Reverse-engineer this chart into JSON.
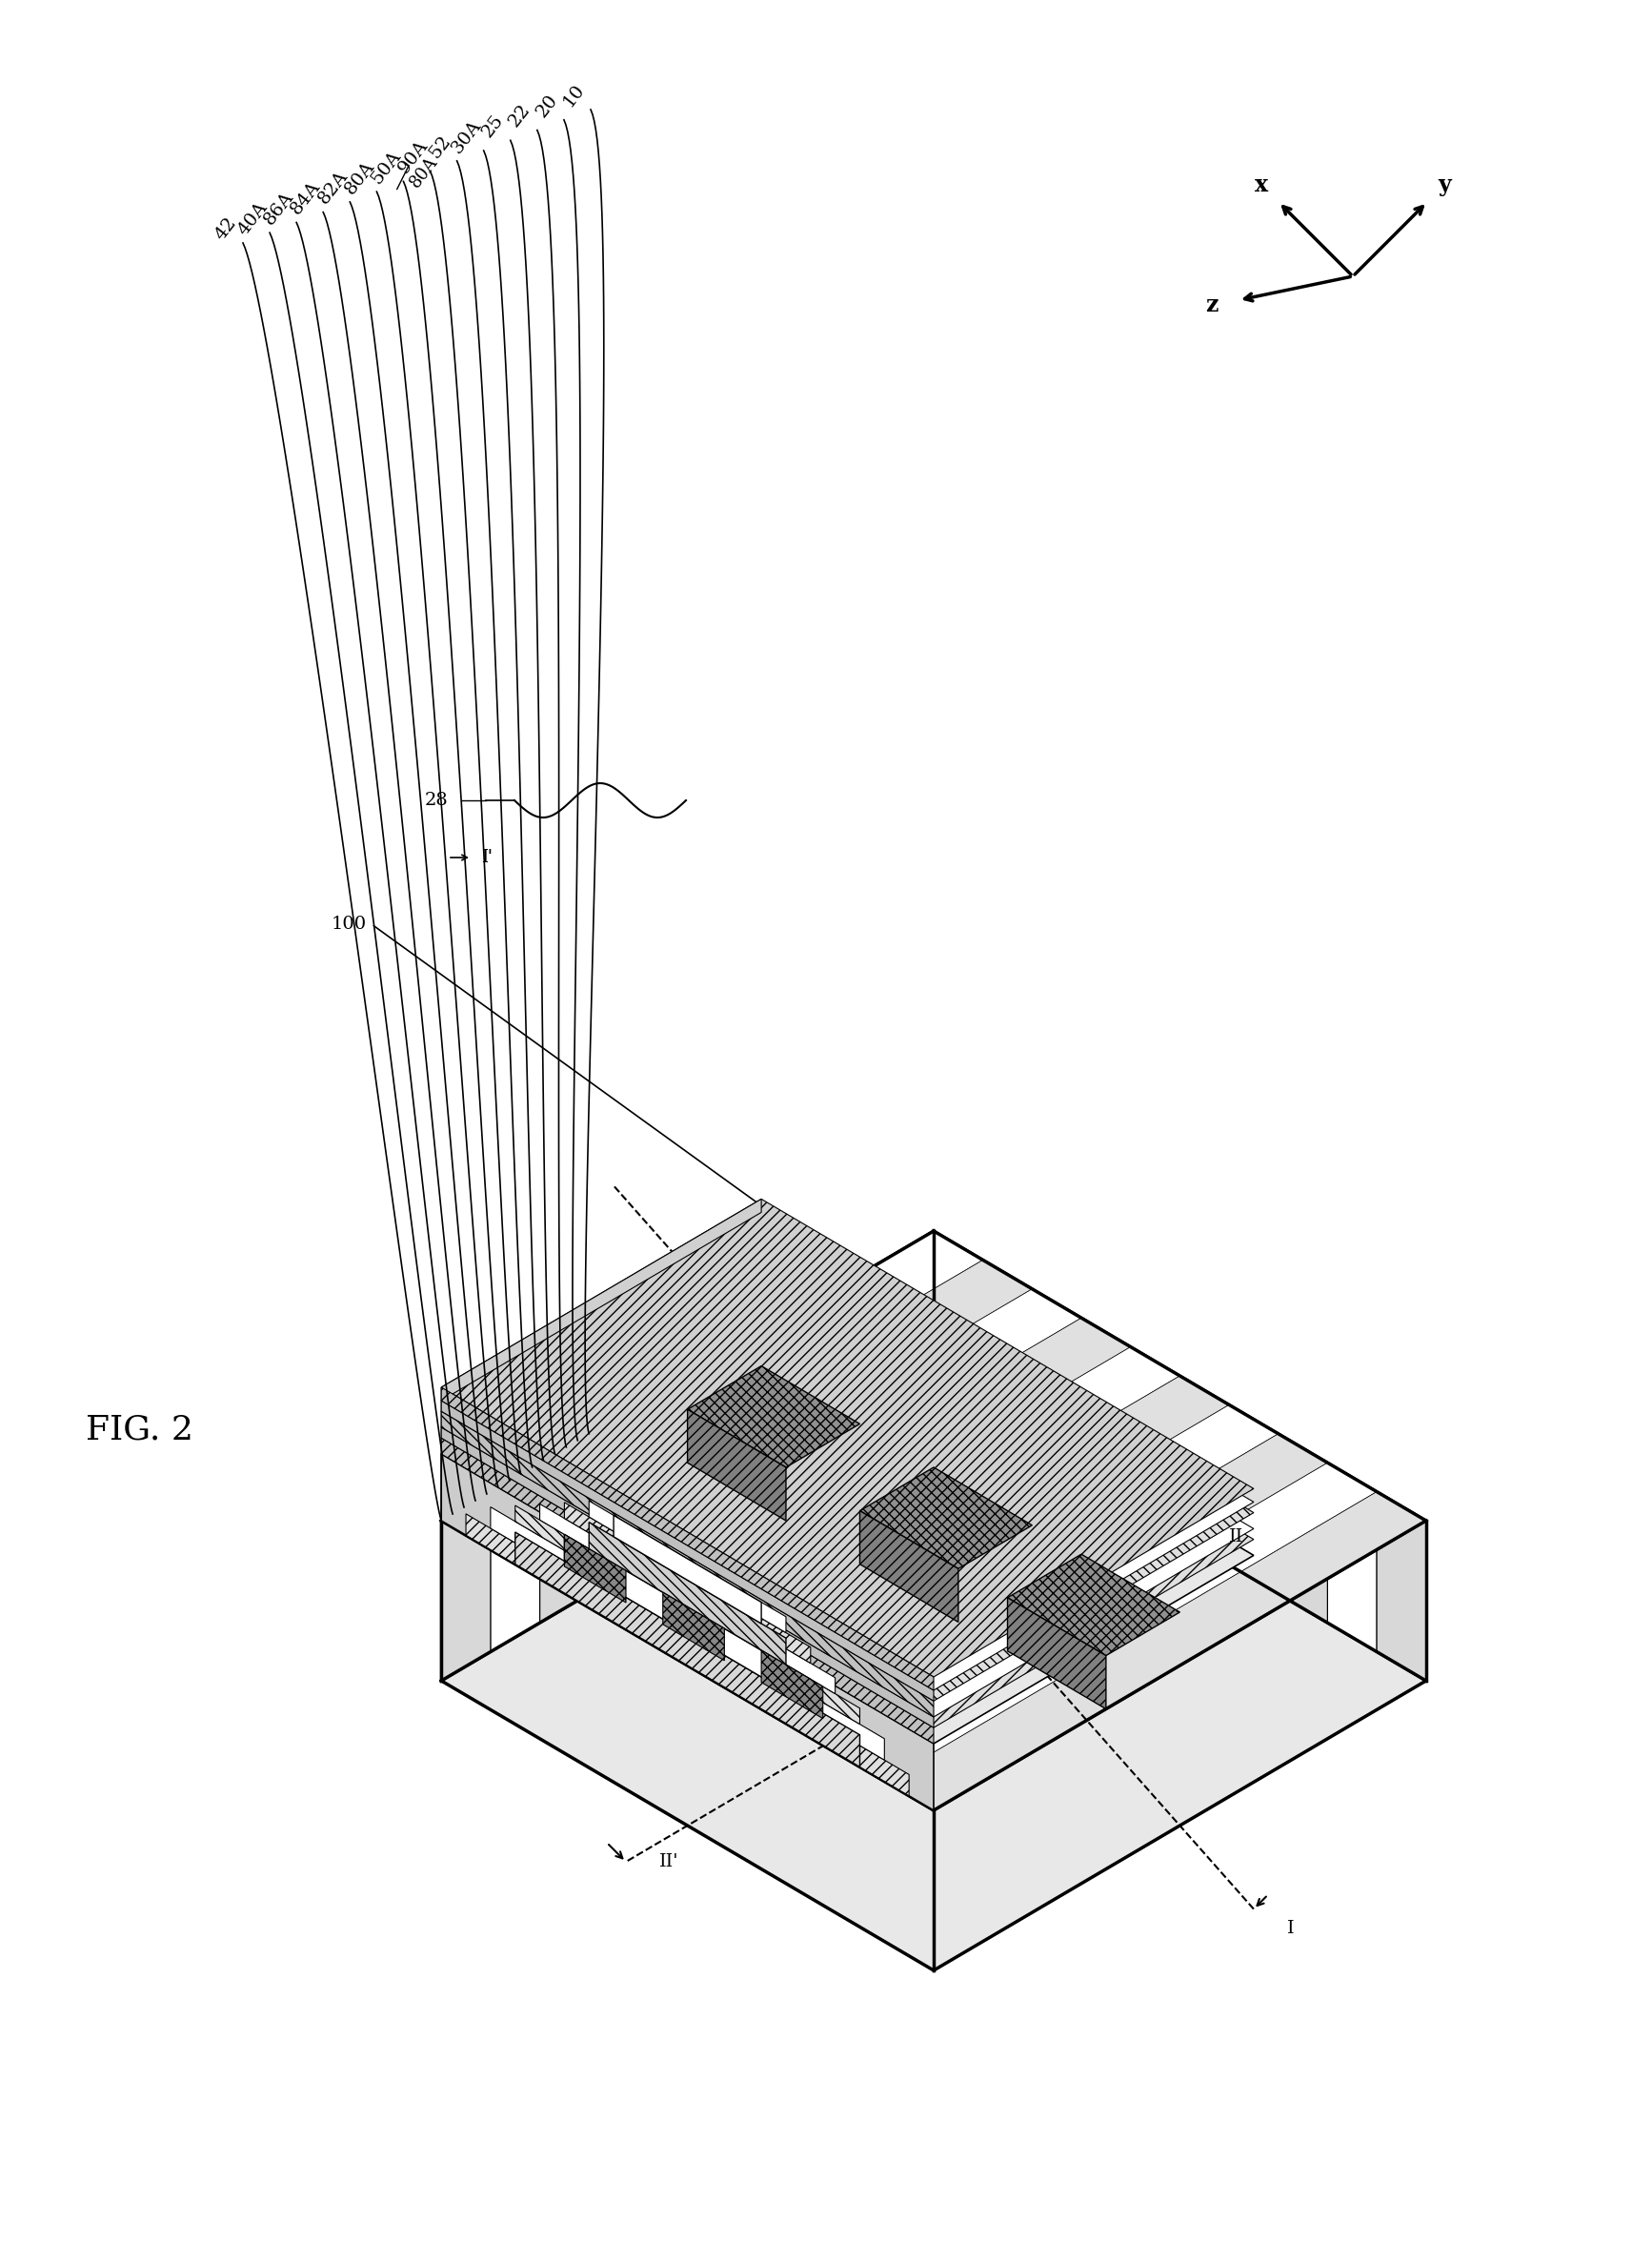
{
  "background": "#ffffff",
  "fig_label": "FIG. 2",
  "fig_fontsize": 26,
  "label_names": [
    "42",
    "40A",
    "86A",
    "84A",
    "82A",
    "80A",
    "50A",
    "90A",
    "52",
    "30A",
    "25",
    "22",
    "20",
    "10"
  ],
  "label_28": "28",
  "label_100": "100",
  "axis_labels": [
    "x",
    "y",
    "z"
  ],
  "cross_labels": [
    "I",
    "I'",
    "II",
    "II'"
  ]
}
